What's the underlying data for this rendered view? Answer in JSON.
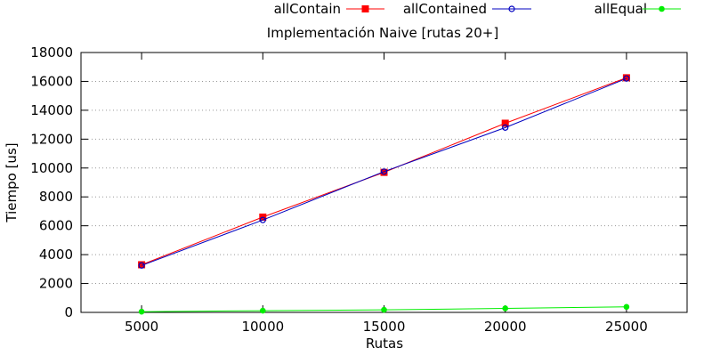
{
  "chart_data": {
    "type": "line",
    "title": "Implementación Naive [rutas 20+]",
    "xlabel": "Rutas",
    "ylabel": "Tiempo [us]",
    "x": [
      5000,
      10000,
      15000,
      20000,
      25000
    ],
    "x_ticks": [
      5000,
      10000,
      15000,
      20000,
      25000
    ],
    "xlim": [
      2500,
      27500
    ],
    "y_ticks": [
      0,
      2000,
      4000,
      6000,
      8000,
      10000,
      12000,
      14000,
      16000,
      18000
    ],
    "ylim": [
      0,
      18000
    ],
    "grid": true,
    "legend_position": "top",
    "series": [
      {
        "name": "allContain",
        "color": "#ff0000",
        "marker": "filled-square",
        "values": [
          3300,
          6600,
          9700,
          13100,
          16250
        ]
      },
      {
        "name": "allContained",
        "color": "#0000c0",
        "marker": "open-circle",
        "values": [
          3250,
          6400,
          9750,
          12800,
          16200
        ]
      },
      {
        "name": "allEqual",
        "color": "#00ee00",
        "marker": "star",
        "values": [
          50,
          120,
          180,
          280,
          380
        ]
      }
    ]
  }
}
